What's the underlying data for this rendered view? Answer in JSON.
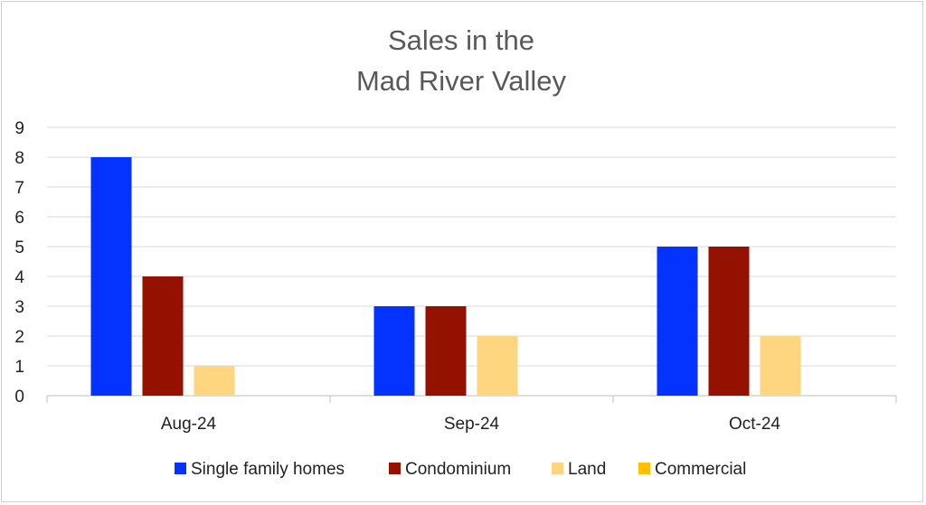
{
  "chart_data": {
    "type": "bar",
    "title_lines": [
      "Sales in the",
      "Mad River Valley"
    ],
    "categories": [
      "Aug-24",
      "Sep-24",
      "Oct-24"
    ],
    "series": [
      {
        "name": "Single family homes",
        "color": "#0433ff",
        "values": [
          8,
          3,
          5
        ]
      },
      {
        "name": "Condominium",
        "color": "#941100",
        "values": [
          4,
          3,
          5
        ]
      },
      {
        "name": "Land",
        "color": "#fed680",
        "values": [
          1,
          2,
          2
        ]
      },
      {
        "name": "Commercial",
        "color": "#ffc000",
        "values": [
          0,
          0,
          0
        ]
      }
    ],
    "ylim": [
      0,
      9
    ],
    "yticks": [
      0,
      1,
      2,
      3,
      4,
      5,
      6,
      7,
      8,
      9
    ],
    "grid": true,
    "legend_position": "bottom"
  }
}
